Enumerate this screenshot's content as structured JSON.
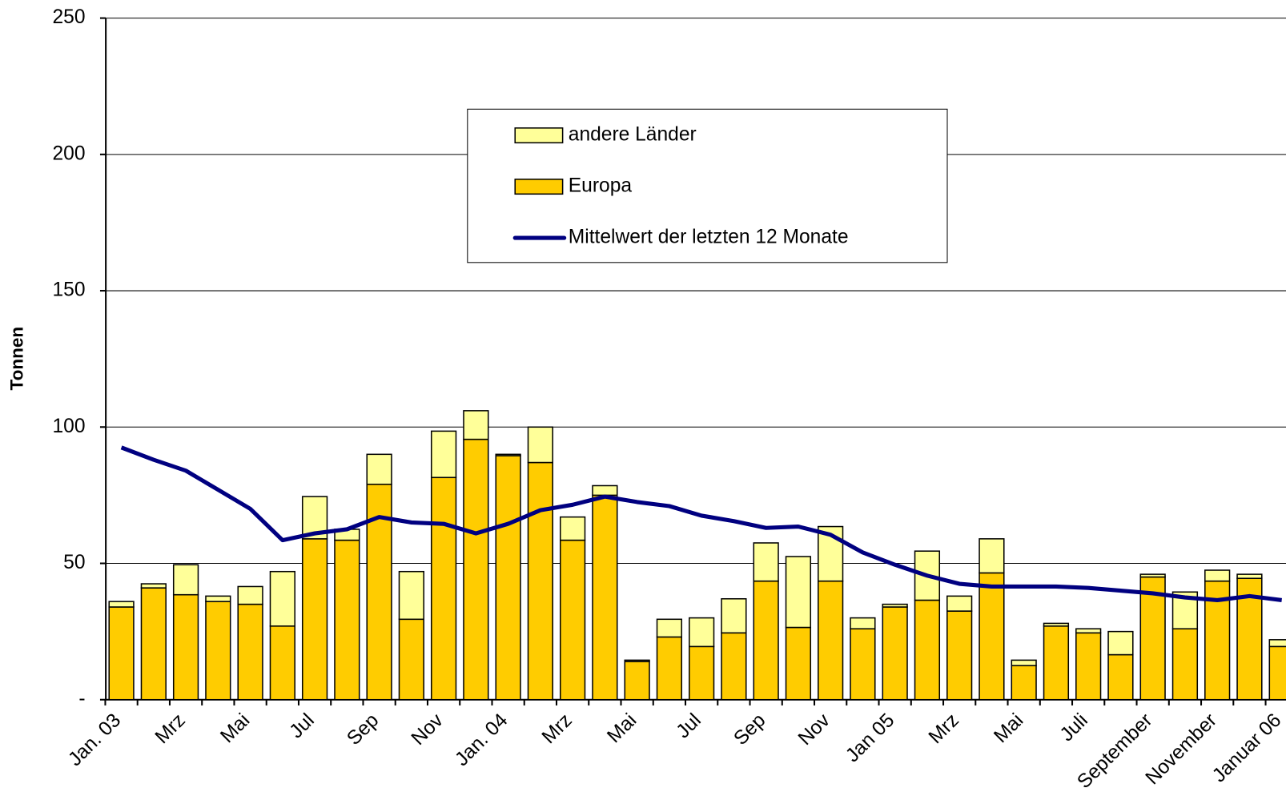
{
  "chart_data": {
    "type": "bar",
    "stacked": true,
    "y_label": "Tonnen",
    "categories": [
      "Jan. 03",
      null,
      "Mrz",
      null,
      "Mai",
      null,
      "Jul",
      null,
      "Sep",
      null,
      "Nov",
      null,
      "Jan. 04",
      null,
      "Mrz",
      null,
      "Mai",
      null,
      "Jul",
      null,
      "Sep",
      null,
      "Nov",
      null,
      "Jan 05",
      null,
      "Mrz",
      null,
      "Mai",
      null,
      "Juli",
      null,
      "September",
      null,
      "November",
      null,
      "Januar 06"
    ],
    "series": [
      {
        "name": "Europa",
        "type": "bar",
        "color": "#ffcc00",
        "values": [
          34,
          41,
          38.5,
          36,
          35,
          27,
          59,
          58.5,
          79,
          29.5,
          81.5,
          95.5,
          89.5,
          87,
          58.5,
          75,
          14,
          23,
          19.5,
          24.5,
          43.5,
          26.5,
          43.5,
          26,
          34,
          36.5,
          32.5,
          46.5,
          12.5,
          27,
          24.5,
          16.5,
          45,
          26,
          43.5,
          44.5,
          19.5
        ]
      },
      {
        "name": "andere Länder",
        "type": "bar",
        "color": "#ffff99",
        "values": [
          2,
          1.5,
          11,
          2,
          6.5,
          20,
          15.5,
          4,
          11,
          17.5,
          17,
          10.5,
          0.5,
          13,
          8.5,
          3.5,
          0.5,
          6.5,
          10.5,
          12.5,
          14,
          26,
          20,
          4,
          1,
          18,
          5.5,
          12.5,
          2,
          1,
          1.5,
          8.5,
          1,
          13.5,
          4,
          1.5,
          2.5
        ]
      },
      {
        "name": "Mittelwert der letzten 12 Monate",
        "type": "line",
        "color": "#000080",
        "values": [
          92.5,
          88,
          84,
          77,
          70,
          58.5,
          61,
          62.5,
          67,
          65,
          64.5,
          61,
          64.5,
          69.5,
          71.5,
          74.5,
          72.5,
          71,
          67.5,
          65.5,
          63,
          63.5,
          60.5,
          54,
          49.5,
          45.5,
          42.5,
          41.5,
          41.5,
          41.5,
          41,
          40,
          39,
          37.5,
          36.5,
          38,
          36.5
        ]
      }
    ],
    "ylim": [
      0,
      250
    ],
    "yticks": [
      {
        "value": 0,
        "label": "-"
      },
      50,
      100,
      150,
      200,
      250
    ],
    "grid": true
  }
}
